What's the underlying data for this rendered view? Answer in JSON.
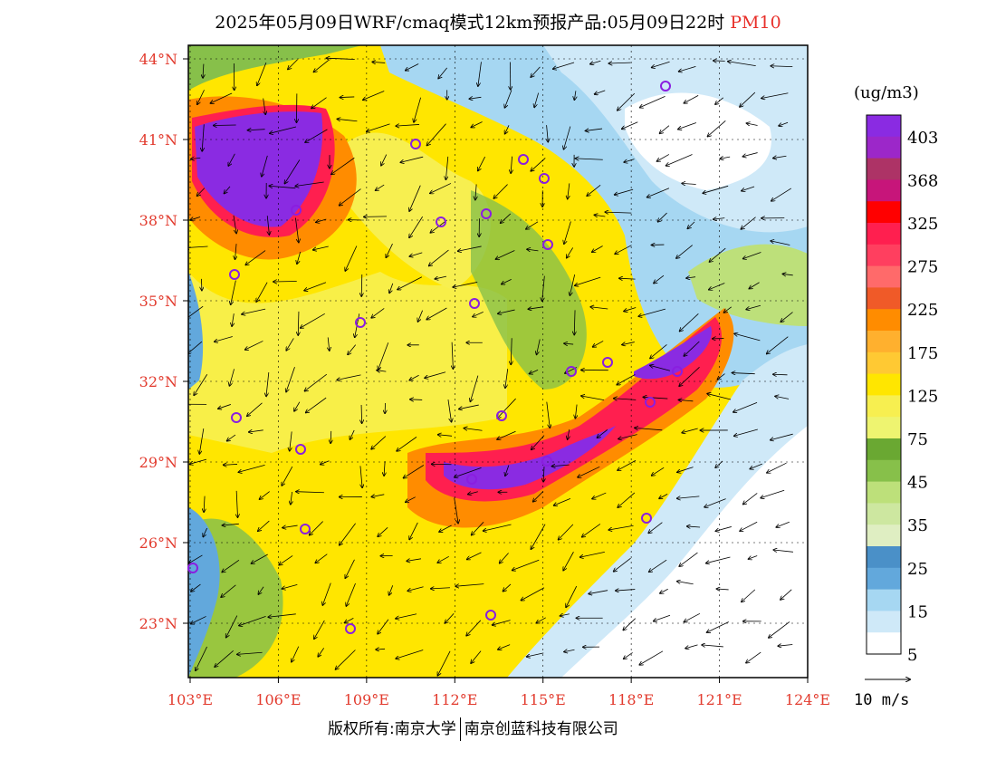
{
  "header": {
    "title": "2025年05月09日WRF/cmaq模式12km预报产品:05月09日22时",
    "species": "PM10"
  },
  "map": {
    "lat_labels": [
      "44°N",
      "41°N",
      "38°N",
      "35°N",
      "32°N",
      "29°N",
      "26°N",
      "23°N"
    ],
    "lon_labels": [
      "103°E",
      "106°E",
      "109°E",
      "112°E",
      "115°E",
      "118°E",
      "121°E",
      "124°E"
    ],
    "lat_values": [
      44,
      41,
      38,
      35,
      32,
      29,
      26,
      23
    ],
    "lon_values": [
      103,
      106,
      109,
      112,
      115,
      118,
      121,
      124
    ]
  },
  "colorbar": {
    "unit": "(ug/m3)",
    "labels": [
      "403",
      "368",
      "325",
      "275",
      "225",
      "175",
      "125",
      "75",
      "45",
      "35",
      "25",
      "15",
      "5"
    ],
    "colors": [
      "#8a2be2",
      "#9c27c9",
      "#ad3366",
      "#c7157a",
      "#ff0000",
      "#ff1f4f",
      "#ff3f5f",
      "#ff6a6a",
      "#f05a28",
      "#ff8c00",
      "#ffb02e",
      "#ffc933",
      "#ffe600",
      "#f7ef50",
      "#eef470",
      "#6aa832",
      "#87c04a",
      "#bde07a",
      "#cde7a0",
      "#dfeec2",
      "#4a90c8",
      "#62a8dc",
      "#a6d7f2",
      "#cfe9f8",
      "#ffffff"
    ]
  },
  "wind_legend": {
    "label": "10 m/s"
  },
  "footer": {
    "copyright": "版权所有:南京大学",
    "company": "南京创蓝科技有限公司"
  }
}
